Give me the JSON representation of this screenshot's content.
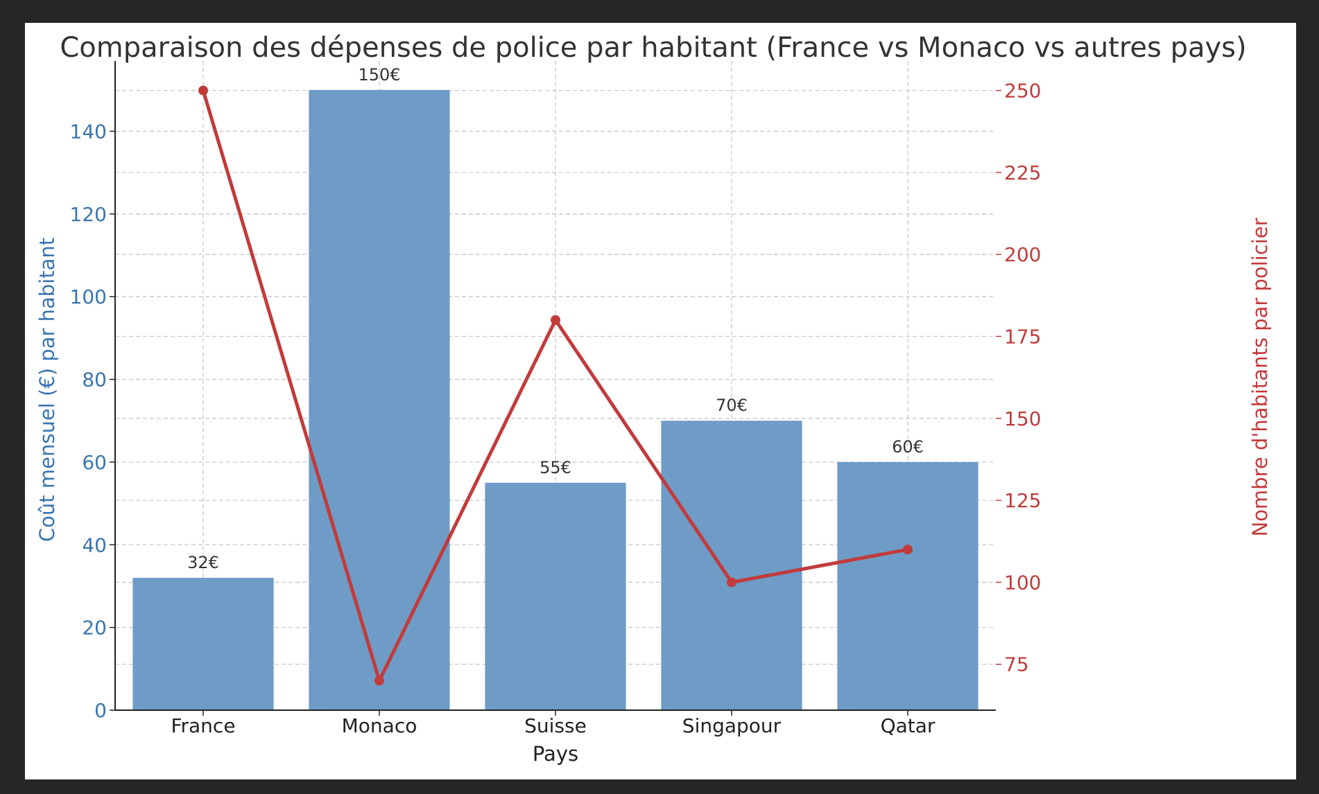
{
  "chart_data": {
    "type": "bar",
    "title": "Comparaison des dépenses de police par habitant (France vs Monaco vs autres pays)",
    "xlabel": "Pays",
    "ylabel": "Coût mensuel (€) par habitant",
    "y2label": "Nombre d'habitants par policier",
    "categories": [
      "France",
      "Monaco",
      "Suisse",
      "Singapour",
      "Qatar"
    ],
    "series": [
      {
        "type": "bar",
        "axis": "left",
        "values": [
          32,
          150,
          55,
          70,
          60
        ],
        "labels": [
          "32€",
          "150€",
          "55€",
          "70€",
          "60€"
        ],
        "color": "#6e9cc7"
      },
      {
        "type": "line",
        "axis": "right",
        "values": [
          250,
          70,
          180,
          100,
          110
        ],
        "color": "#c23b3b"
      }
    ],
    "ylim": [
      0,
      157
    ],
    "yticks": [
      0,
      20,
      40,
      60,
      80,
      100,
      120,
      140
    ],
    "y2lim": [
      61,
      259
    ],
    "y2ticks": [
      75,
      100,
      125,
      150,
      175,
      200,
      225,
      250
    ],
    "grid": true,
    "colors": {
      "left_axis": "#3a75b0",
      "right_axis": "#c23b3b",
      "bar": "#6e9cc7",
      "line": "#c23b3b"
    }
  }
}
